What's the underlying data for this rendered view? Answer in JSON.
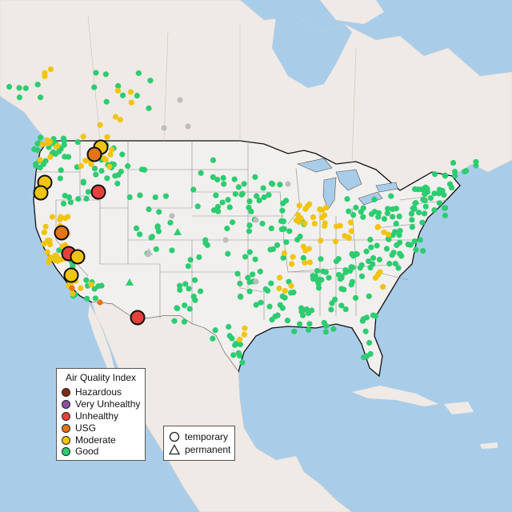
{
  "legend": {
    "title": "Air Quality Index",
    "items": [
      {
        "label": "Hazardous",
        "color": "#7e2b16"
      },
      {
        "label": "Very Unhealthy",
        "color": "#8e4fa5"
      },
      {
        "label": "Unhealthy",
        "color": "#e8403a"
      },
      {
        "label": "USG",
        "color": "#e47418"
      },
      {
        "label": "Moderate",
        "color": "#f1c40f"
      },
      {
        "label": "Good",
        "color": "#2ecc71"
      }
    ]
  },
  "type_legend": {
    "items": [
      {
        "label": "temporary",
        "shape": "circle-icon"
      },
      {
        "label": "permanent",
        "shape": "triangle-icon"
      }
    ]
  },
  "colors": {
    "water": "#a9cde9",
    "land": "#efeae6",
    "us_land": "#f1efee",
    "inactive": "#bdbdbd"
  }
}
